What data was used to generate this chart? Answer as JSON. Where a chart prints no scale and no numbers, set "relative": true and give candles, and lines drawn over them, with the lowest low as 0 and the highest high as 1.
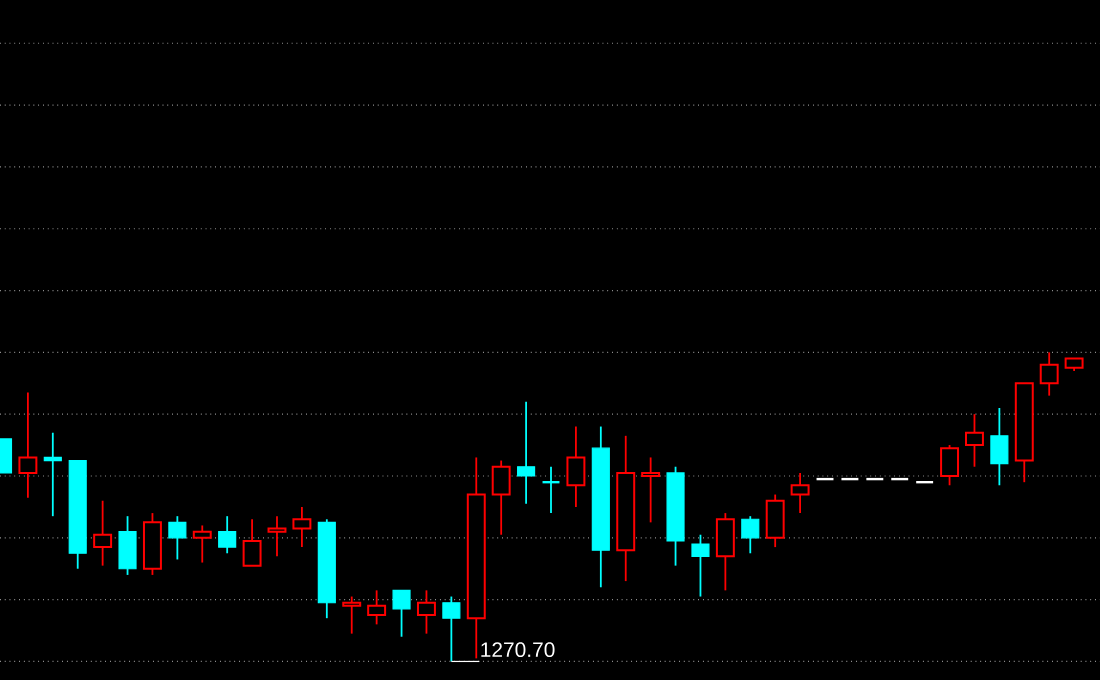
{
  "chart_data": {
    "type": "candlestick",
    "relative": true,
    "grid": "y",
    "categories": [
      null,
      null,
      null,
      null,
      null,
      null,
      null,
      null,
      null,
      null,
      null,
      null,
      null,
      null,
      null,
      null,
      null,
      null,
      null,
      null,
      null,
      null,
      null,
      null,
      null,
      null,
      null,
      null,
      null,
      null,
      null,
      null,
      null,
      null,
      null,
      null,
      null,
      null,
      null,
      null,
      null,
      null,
      null,
      null
    ],
    "ohlc": [
      [
        0.72,
        0.72,
        0.61,
        0.61
      ],
      [
        0.61,
        0.87,
        0.53,
        0.66
      ],
      [
        0.66,
        0.74,
        0.47,
        0.65
      ],
      [
        0.65,
        0.65,
        0.3,
        0.35
      ],
      [
        0.37,
        0.52,
        0.31,
        0.41
      ],
      [
        0.42,
        0.47,
        0.28,
        0.3
      ],
      [
        0.3,
        0.48,
        0.28,
        0.45
      ],
      [
        0.45,
        0.47,
        0.33,
        0.4
      ],
      [
        0.4,
        0.44,
        0.32,
        0.42
      ],
      [
        0.42,
        0.47,
        0.35,
        0.37
      ],
      [
        0.31,
        0.46,
        0.31,
        0.39
      ],
      [
        0.42,
        0.47,
        0.34,
        0.43
      ],
      [
        0.43,
        0.5,
        0.37,
        0.46
      ],
      [
        0.45,
        0.46,
        0.14,
        0.19
      ],
      [
        0.18,
        0.21,
        0.09,
        0.19
      ],
      [
        0.15,
        0.23,
        0.12,
        0.18
      ],
      [
        0.23,
        0.23,
        0.08,
        0.17
      ],
      [
        0.15,
        0.23,
        0.09,
        0.19
      ],
      [
        0.19,
        0.21,
        0.0,
        0.14
      ],
      [
        0.14,
        0.66,
        0.01,
        0.54
      ],
      [
        0.54,
        0.65,
        0.41,
        0.63
      ],
      [
        0.63,
        0.84,
        0.51,
        0.6
      ],
      [
        0.58,
        0.63,
        0.48,
        0.58
      ],
      [
        0.57,
        0.76,
        0.5,
        0.66
      ],
      [
        0.69,
        0.76,
        0.24,
        0.36
      ],
      [
        0.36,
        0.73,
        0.26,
        0.61
      ],
      [
        0.6,
        0.66,
        0.45,
        0.61
      ],
      [
        0.61,
        0.63,
        0.31,
        0.39
      ],
      [
        0.38,
        0.41,
        0.21,
        0.34
      ],
      [
        0.34,
        0.48,
        0.23,
        0.46
      ],
      [
        0.46,
        0.47,
        0.35,
        0.4
      ],
      [
        0.4,
        0.54,
        0.37,
        0.52
      ],
      [
        0.54,
        0.61,
        0.48,
        0.57
      ],
      [
        0.59,
        0.59,
        0.59,
        0.59
      ],
      [
        0.59,
        0.59,
        0.59,
        0.59
      ],
      [
        0.59,
        0.59,
        0.59,
        0.59
      ],
      [
        0.59,
        0.59,
        0.59,
        0.59
      ],
      [
        0.58,
        0.58,
        0.58,
        0.58
      ],
      [
        0.6,
        0.7,
        0.57,
        0.69
      ],
      [
        0.7,
        0.8,
        0.63,
        0.74
      ],
      [
        0.73,
        0.82,
        0.57,
        0.64
      ],
      [
        0.65,
        0.9,
        0.58,
        0.9
      ],
      [
        0.9,
        1.0,
        0.86,
        0.96
      ],
      [
        0.95,
        0.98,
        0.94,
        0.98
      ]
    ],
    "colors": [
      "#00ffff",
      "#ff0000",
      "#00ffff",
      "#00ffff",
      "#ff0000",
      "#00ffff",
      "#ff0000",
      "#00ffff",
      "#ff0000",
      "#00ffff",
      "#ff0000",
      "#ff0000",
      "#ff0000",
      "#00ffff",
      "#ff0000",
      "#ff0000",
      "#00ffff",
      "#ff0000",
      "#00ffff",
      "#ff0000",
      "#ff0000",
      "#00ffff",
      "#00ffff",
      "#ff0000",
      "#00ffff",
      "#ff0000",
      "#ff0000",
      "#00ffff",
      "#00ffff",
      "#ff0000",
      "#00ffff",
      "#ff0000",
      "#ff0000",
      "#ffffff",
      "#ffffff",
      "#ffffff",
      "#ffffff",
      "#ffffff",
      "#ff0000",
      "#ff0000",
      "#00ffff",
      "#ff0000",
      "#ff0000",
      "#ff0000"
    ],
    "annotations": [
      "1270.70"
    ]
  }
}
